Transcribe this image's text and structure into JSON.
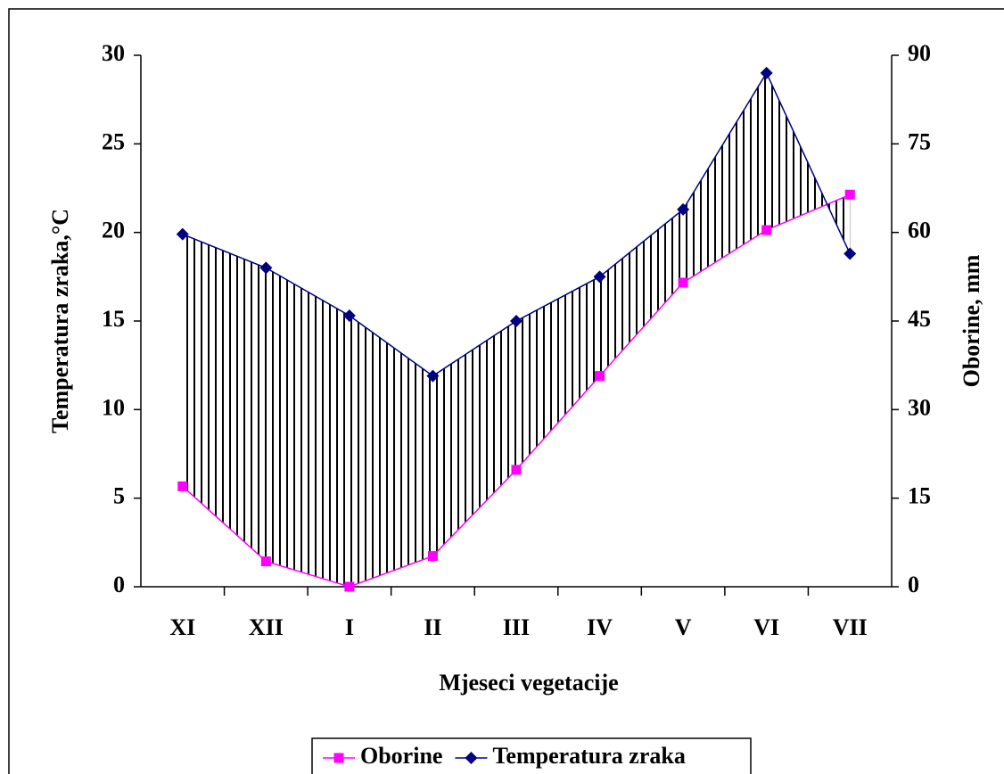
{
  "chart_data": {
    "type": "line",
    "x_label": "Mjeseci vegetacije",
    "y_label": "Temperatura zraka,°C",
    "y2_label": "Oborine, mm",
    "categories": [
      "XI",
      "XII",
      "I",
      "II",
      "III",
      "IV",
      "V",
      "VI",
      "VII"
    ],
    "series": [
      {
        "name": "Oborine",
        "color": "#ff00ff",
        "marker": "square",
        "axis": "y2",
        "values": [
          17,
          4.3,
          0,
          5.2,
          19.8,
          35.7,
          51.5,
          60.4,
          66.4
        ]
      },
      {
        "name": "Temperatura zraka",
        "color": "#000080",
        "marker": "diamond",
        "values": [
          19.9,
          18.0,
          15.3,
          11.9,
          15.0,
          17.5,
          21.3,
          29.0,
          18.8
        ]
      }
    ],
    "ylim": [
      0,
      30
    ],
    "yticks": [
      0,
      5,
      10,
      15,
      20,
      25,
      30
    ],
    "y2lim": [
      0,
      90
    ],
    "y2ticks": [
      0,
      15,
      30,
      45,
      60,
      75,
      90
    ],
    "legend": "bottom"
  }
}
